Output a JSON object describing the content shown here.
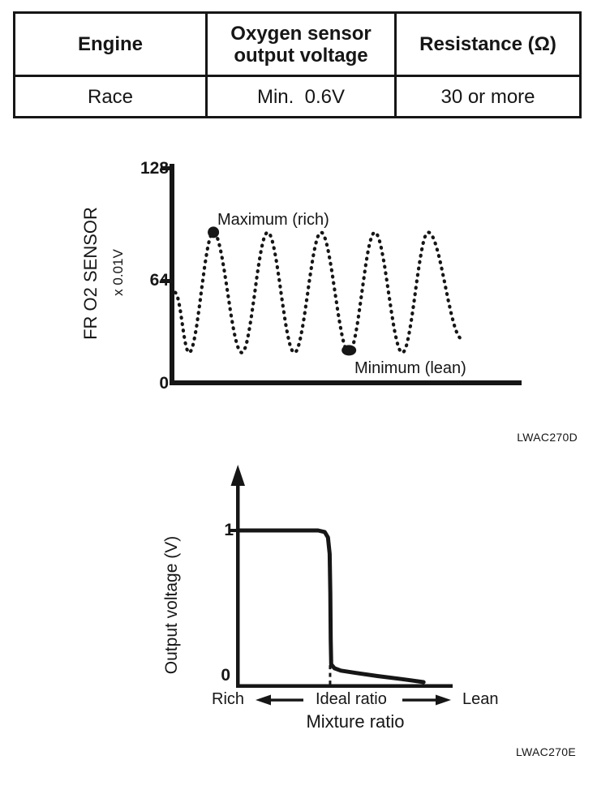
{
  "page": {
    "background": "#ffffff",
    "ink": "#161616"
  },
  "table": {
    "headers": [
      "Engine",
      "Oxygen sensor output voltage",
      "Resistance (Ω)"
    ],
    "rows": [
      [
        "Race",
        "Min.  0.6V",
        "30 or more"
      ]
    ]
  },
  "chart_data": [
    {
      "type": "scatter",
      "ylabel": "FR O2 SENSOR",
      "ylabel_unit": "x 0.01V",
      "ylim": [
        0,
        128
      ],
      "yticks": [
        0,
        64,
        128
      ],
      "wave_extrema": [
        [
          0.0,
          54
        ],
        [
          0.048,
          18
        ],
        [
          0.133,
          90
        ],
        [
          0.232,
          18
        ],
        [
          0.322,
          90
        ],
        [
          0.415,
          18
        ],
        [
          0.508,
          90
        ],
        [
          0.605,
          18
        ],
        [
          0.695,
          90
        ],
        [
          0.791,
          18
        ],
        [
          0.881,
          90
        ],
        [
          1.0,
          26
        ]
      ],
      "annotations": [
        {
          "label": "Maximum (rich)",
          "t": 0.133,
          "value": 90
        },
        {
          "label": "Minimum (lean)",
          "t": 0.605,
          "value": 18
        }
      ],
      "figure_code": "LWAC270D"
    },
    {
      "type": "line",
      "ylabel": "Output voltage (V)",
      "yticks": [
        0,
        1
      ],
      "xlabel": "Mixture ratio",
      "x_axis_annotations": [
        "Rich",
        "Ideal ratio",
        "Lean"
      ],
      "ideal_ratio_x": 0.43,
      "curve_points": [
        [
          0.008,
          1.0
        ],
        [
          0.374,
          1.0
        ],
        [
          0.405,
          0.99
        ],
        [
          0.42,
          0.955
        ],
        [
          0.428,
          0.85
        ],
        [
          0.431,
          0.6
        ],
        [
          0.433,
          0.3
        ],
        [
          0.435,
          0.14
        ],
        [
          0.45,
          0.115
        ],
        [
          0.48,
          0.1
        ],
        [
          0.55,
          0.085
        ],
        [
          0.65,
          0.065
        ],
        [
          0.75,
          0.048
        ],
        [
          0.82,
          0.035
        ],
        [
          0.865,
          0.026
        ]
      ],
      "figure_code": "LWAC270E"
    }
  ]
}
